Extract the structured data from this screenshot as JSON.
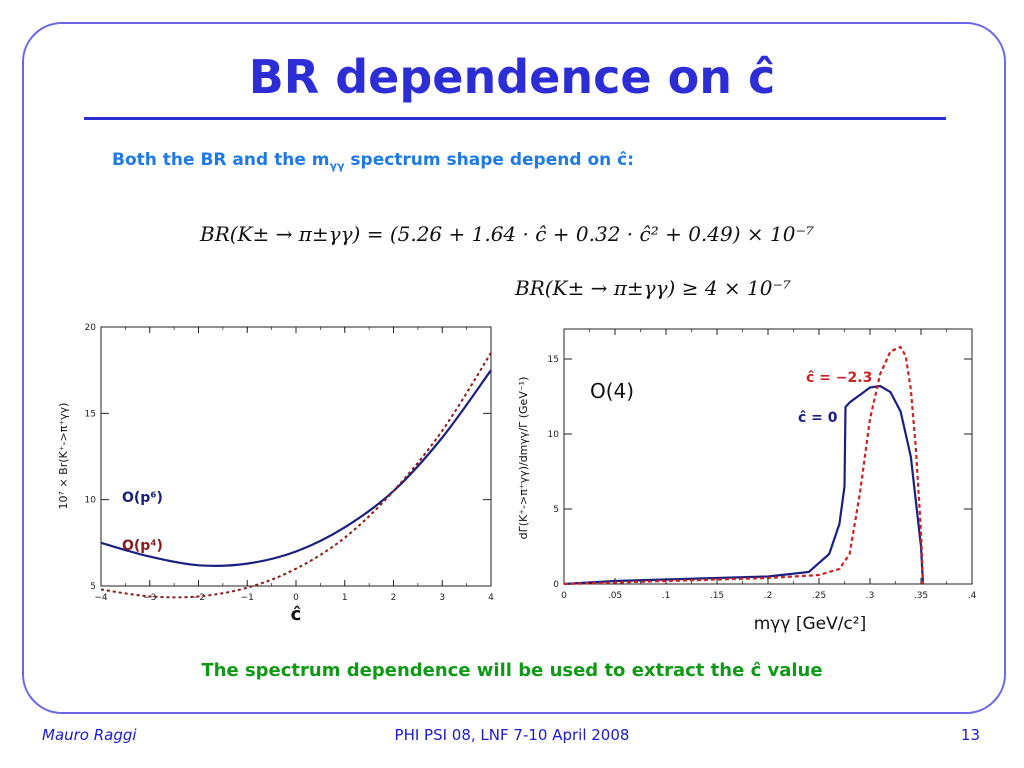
{
  "slide": {
    "title": "BR dependence on ĉ",
    "intro_prefix": "Both the BR and the m",
    "intro_sub": "γγ",
    "intro_suffix": " spectrum shape depend on ĉ:",
    "formula1": "BR(K± → π±γγ) = (5.26 + 1.64 · ĉ + 0.32 · ĉ² + 0.49) × 10⁻⁷",
    "formula2": "BR(K± → π±γγ) ≥ 4 × 10⁻⁷",
    "bottom_text": "The spectrum dependence will be used to extract the ĉ value"
  },
  "footer": {
    "author": "Mauro Raggi",
    "event": "PHI PSI 08, LNF 7-10 April 2008",
    "page": "13"
  },
  "colors": {
    "frame": "#6a66e8",
    "title": "#2d2dd6",
    "intro": "#1f7ae6",
    "bottom": "#0e9a16",
    "navy": "#1a2080",
    "red": "#cc2222",
    "darkred": "#8b1a1a"
  },
  "chart_data": [
    {
      "type": "line",
      "xlabel": "ĉ",
      "ylabel": "10⁷ × Br(K⁺->π⁺γγ)",
      "xlim": [
        -4,
        4
      ],
      "ylim": [
        5,
        20
      ],
      "xticks": [
        "−4",
        "−3",
        "−2",
        "−1",
        "0",
        "1",
        "2",
        "3",
        "4"
      ],
      "yticks": [
        "5",
        "10",
        "15",
        "20"
      ],
      "series": [
        {
          "name": "O(p⁶)",
          "x": [
            -4,
            -3,
            -2,
            -1,
            0,
            1,
            2,
            3,
            4
          ],
          "y": [
            7.5,
            6.7,
            6.2,
            6.3,
            7.0,
            8.4,
            10.5,
            13.6,
            17.5
          ]
        },
        {
          "name": "O(p⁴)",
          "x": [
            -4,
            -3,
            -2,
            -1,
            0,
            1,
            2,
            3,
            4
          ],
          "y": [
            4.8,
            4.4,
            4.4,
            4.9,
            6.0,
            7.8,
            10.5,
            14.0,
            18.5
          ]
        }
      ]
    },
    {
      "type": "line",
      "xlabel": "mγγ   [GeV/c²]",
      "ylabel": "dΓ(K⁺->π⁺γγ)/dmγγ/Γ   (GeV⁻¹)",
      "annotation": "O(4)",
      "xlim": [
        0,
        0.4
      ],
      "ylim": [
        0,
        17
      ],
      "xticks": [
        "0",
        ".05",
        ".1",
        ".15",
        ".2",
        ".25",
        ".3",
        ".35",
        ".4"
      ],
      "yticks": [
        "0",
        "5",
        "10",
        "15"
      ],
      "series": [
        {
          "name": "ĉ = 0",
          "x": [
            0,
            0.05,
            0.1,
            0.15,
            0.2,
            0.24,
            0.26,
            0.27,
            0.275,
            0.276,
            0.28,
            0.29,
            0.3,
            0.31,
            0.32,
            0.33,
            0.34,
            0.345,
            0.35,
            0.352
          ],
          "y": [
            0,
            0.2,
            0.3,
            0.4,
            0.5,
            0.8,
            2.0,
            4.0,
            6.5,
            11.8,
            12.1,
            12.6,
            13.1,
            13.2,
            12.8,
            11.5,
            8.5,
            5.5,
            2.5,
            0
          ]
        },
        {
          "name": "ĉ = −2.3",
          "x": [
            0,
            0.05,
            0.1,
            0.15,
            0.2,
            0.25,
            0.27,
            0.28,
            0.29,
            0.3,
            0.31,
            0.32,
            0.33,
            0.335,
            0.34,
            0.345,
            0.35,
            0.352
          ],
          "y": [
            0,
            0.1,
            0.2,
            0.3,
            0.4,
            0.6,
            1.0,
            2.0,
            6.0,
            11.0,
            14.0,
            15.5,
            15.8,
            15.2,
            13.0,
            9.0,
            3.5,
            0
          ]
        }
      ]
    }
  ]
}
